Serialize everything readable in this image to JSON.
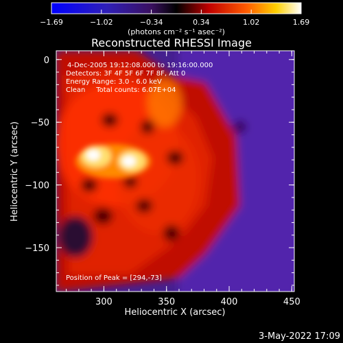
{
  "chart_data": {
    "type": "heatmap",
    "title": "Reconstructed RHESSI Image",
    "xlabel": "Heliocentric X (arcsec)",
    "ylabel": "Heliocentric Y (arcsec)",
    "xlim": [
      262,
      452
    ],
    "ylim": [
      -185,
      7
    ],
    "xticks": [
      300,
      350,
      400,
      450
    ],
    "yticks": [
      0,
      -50,
      -100,
      -150
    ],
    "colorbar": {
      "unit_label": "(photons cm⁻² s⁻¹ asec⁻²)",
      "range": [
        -1.69,
        1.69
      ],
      "tick_labels": [
        "-1.69",
        "-1.02",
        "-0.34",
        "0.34",
        "1.02",
        "1.69"
      ]
    },
    "annotations": [
      "4-Dec-2005 19:12:08.000 to 19:16:00.000",
      "Detectors: 3F 4F 5F 6F 7F 8F, Att 0",
      "Energy Range: 3.0 - 6.0 keV",
      "Clean     Total counts: 6.07E+04"
    ],
    "peak_label": "Position of Peak = [294,-73]",
    "peak": [
      294,
      -73
    ],
    "colors": {
      "cold": "#0000ff",
      "mid": "#000000",
      "warm": "#ff0000",
      "hot": "#ffffff"
    }
  },
  "footer": {
    "date": "3-May-2022 17:09"
  }
}
